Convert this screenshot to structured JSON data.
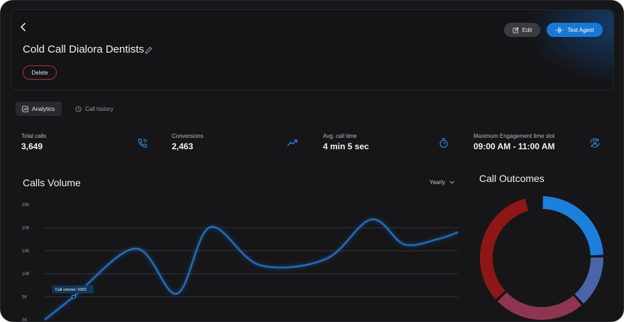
{
  "header": {
    "title": "Cold Call Dialora Dentists",
    "delete_label": "Delete",
    "edit_label": "Edit",
    "test_agent_label": "Test Agent"
  },
  "tabs": [
    {
      "label": "Analytics",
      "active": true
    },
    {
      "label": "Call history",
      "active": false
    }
  ],
  "stats": [
    {
      "label": "Total calls",
      "value": "3,649",
      "icon": "phone-icon"
    },
    {
      "label": "Conversions",
      "value": "2,463",
      "icon": "trend-up-icon"
    },
    {
      "label": "Avg. call time",
      "value": "4 min 5 sec",
      "icon": "stopwatch-icon"
    },
    {
      "label": "Maximum Engagement time slot",
      "value": "09:00 AM - 11:00 AM",
      "icon": "user-sync-icon"
    }
  ],
  "calls_volume": {
    "title": "Calls Volume",
    "period": "Yearly",
    "tooltip": "Call volume: 5002"
  },
  "call_outcomes": {
    "title": "Call Outcomes"
  },
  "colors": {
    "accent": "#1878d4",
    "danger": "#a8343d",
    "line": "#2b7fd6"
  },
  "chart_data": [
    {
      "type": "line",
      "title": "Calls Volume",
      "yticks": [
        "25K",
        "20K",
        "15K",
        "10K",
        "5K",
        "0K"
      ],
      "ylim": [
        0,
        25000
      ],
      "grid": true,
      "x": [
        0,
        0.07,
        0.22,
        0.32,
        0.4,
        0.52,
        0.68,
        0.79,
        0.87,
        0.95,
        1.0
      ],
      "values": [
        0,
        5002,
        15500,
        5700,
        20100,
        11900,
        13200,
        21800,
        16400,
        17500,
        19000
      ]
    },
    {
      "type": "pie",
      "title": "Call Outcomes",
      "slices": [
        {
          "fraction": 0.245,
          "color": "#1c7fdc"
        },
        {
          "fraction": 0.14,
          "color": "#4a64a8"
        },
        {
          "fraction": 0.245,
          "color": "#8e3650"
        },
        {
          "fraction": 0.33,
          "color": "#8e1616"
        }
      ]
    }
  ]
}
